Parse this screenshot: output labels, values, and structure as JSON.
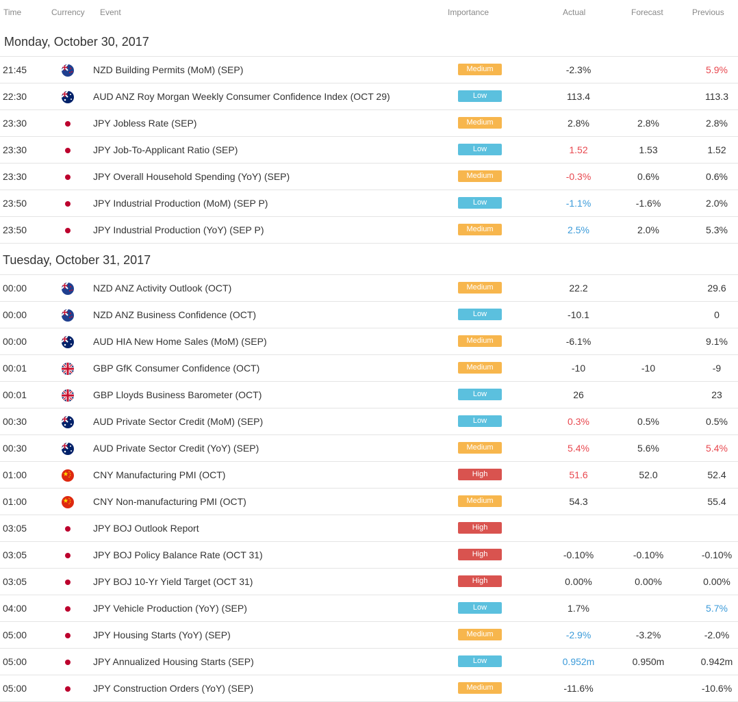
{
  "colors": {
    "medium": "#f7b64d",
    "low": "#5bc0de",
    "high": "#d9534f",
    "negative": "#e8474e",
    "positive": "#3a9ad9",
    "neutral": "#333333"
  },
  "columns": {
    "time": "Time",
    "currency": "Currency",
    "event": "Event",
    "importance": "Importance",
    "actual": "Actual",
    "forecast": "Forecast",
    "previous": "Previous"
  },
  "days": [
    {
      "title": "Monday, October 30, 2017",
      "rows": [
        {
          "time": "21:45",
          "flag": "nzd-flag-icon",
          "event": "NZD Building Permits (MoM) (SEP)",
          "importance": "Medium",
          "actual": "-2.3%",
          "actual_tone": "neutral",
          "forecast": "",
          "previous": "5.9%",
          "previous_tone": "negative"
        },
        {
          "time": "22:30",
          "flag": "aud-flag-icon",
          "event": "AUD ANZ Roy Morgan Weekly Consumer Confidence Index (OCT 29)",
          "importance": "Low",
          "actual": "113.4",
          "actual_tone": "neutral",
          "forecast": "",
          "previous": "113.3",
          "previous_tone": "neutral"
        },
        {
          "time": "23:30",
          "flag": "jpy-flag-icon",
          "event": "JPY Jobless Rate (SEP)",
          "importance": "Medium",
          "actual": "2.8%",
          "actual_tone": "neutral",
          "forecast": "2.8%",
          "previous": "2.8%",
          "previous_tone": "neutral"
        },
        {
          "time": "23:30",
          "flag": "jpy-flag-icon",
          "event": "JPY Job-To-Applicant Ratio (SEP)",
          "importance": "Low",
          "actual": "1.52",
          "actual_tone": "negative",
          "forecast": "1.53",
          "previous": "1.52",
          "previous_tone": "neutral"
        },
        {
          "time": "23:30",
          "flag": "jpy-flag-icon",
          "event": "JPY Overall Household Spending (YoY) (SEP)",
          "importance": "Medium",
          "actual": "-0.3%",
          "actual_tone": "negative",
          "forecast": "0.6%",
          "previous": "0.6%",
          "previous_tone": "neutral"
        },
        {
          "time": "23:50",
          "flag": "jpy-flag-icon",
          "event": "JPY Industrial Production (MoM) (SEP P)",
          "importance": "Low",
          "actual": "-1.1%",
          "actual_tone": "positive",
          "forecast": "-1.6%",
          "previous": "2.0%",
          "previous_tone": "neutral"
        },
        {
          "time": "23:50",
          "flag": "jpy-flag-icon",
          "event": "JPY Industrial Production (YoY) (SEP P)",
          "importance": "Medium",
          "actual": "2.5%",
          "actual_tone": "positive",
          "forecast": "2.0%",
          "previous": "5.3%",
          "previous_tone": "neutral"
        }
      ]
    },
    {
      "title": "Tuesday, October 31, 2017",
      "rows": [
        {
          "time": "00:00",
          "flag": "nzd-flag-icon",
          "event": "NZD ANZ Activity Outlook (OCT)",
          "importance": "Medium",
          "actual": "22.2",
          "actual_tone": "neutral",
          "forecast": "",
          "previous": "29.6",
          "previous_tone": "neutral"
        },
        {
          "time": "00:00",
          "flag": "nzd-flag-icon",
          "event": "NZD ANZ Business Confidence (OCT)",
          "importance": "Low",
          "actual": "-10.1",
          "actual_tone": "neutral",
          "forecast": "",
          "previous": "0",
          "previous_tone": "neutral"
        },
        {
          "time": "00:00",
          "flag": "aud-flag-icon",
          "event": "AUD HIA New Home Sales (MoM) (SEP)",
          "importance": "Medium",
          "actual": "-6.1%",
          "actual_tone": "neutral",
          "forecast": "",
          "previous": "9.1%",
          "previous_tone": "neutral"
        },
        {
          "time": "00:01",
          "flag": "gbp-flag-icon",
          "event": "GBP GfK Consumer Confidence (OCT)",
          "importance": "Medium",
          "actual": "-10",
          "actual_tone": "neutral",
          "forecast": "-10",
          "previous": "-9",
          "previous_tone": "neutral"
        },
        {
          "time": "00:01",
          "flag": "gbp-flag-icon",
          "event": "GBP Lloyds Business Barometer (OCT)",
          "importance": "Low",
          "actual": "26",
          "actual_tone": "neutral",
          "forecast": "",
          "previous": "23",
          "previous_tone": "neutral"
        },
        {
          "time": "00:30",
          "flag": "aud-flag-icon",
          "event": "AUD Private Sector Credit (MoM) (SEP)",
          "importance": "Low",
          "actual": "0.3%",
          "actual_tone": "negative",
          "forecast": "0.5%",
          "previous": "0.5%",
          "previous_tone": "neutral"
        },
        {
          "time": "00:30",
          "flag": "aud-flag-icon",
          "event": "AUD Private Sector Credit (YoY) (SEP)",
          "importance": "Medium",
          "actual": "5.4%",
          "actual_tone": "negative",
          "forecast": "5.6%",
          "previous": "5.4%",
          "previous_tone": "negative"
        },
        {
          "time": "01:00",
          "flag": "cny-flag-icon",
          "event": "CNY Manufacturing PMI (OCT)",
          "importance": "High",
          "actual": "51.6",
          "actual_tone": "negative",
          "forecast": "52.0",
          "previous": "52.4",
          "previous_tone": "neutral"
        },
        {
          "time": "01:00",
          "flag": "cny-flag-icon",
          "event": "CNY Non-manufacturing PMI (OCT)",
          "importance": "Medium",
          "actual": "54.3",
          "actual_tone": "neutral",
          "forecast": "",
          "previous": "55.4",
          "previous_tone": "neutral"
        },
        {
          "time": "03:05",
          "flag": "jpy-flag-icon",
          "event": "JPY BOJ Outlook Report",
          "importance": "High",
          "actual": "",
          "actual_tone": "neutral",
          "forecast": "",
          "previous": "",
          "previous_tone": "neutral"
        },
        {
          "time": "03:05",
          "flag": "jpy-flag-icon",
          "event": "JPY BOJ Policy Balance Rate (OCT 31)",
          "importance": "High",
          "actual": "-0.10%",
          "actual_tone": "neutral",
          "forecast": "-0.10%",
          "previous": "-0.10%",
          "previous_tone": "neutral"
        },
        {
          "time": "03:05",
          "flag": "jpy-flag-icon",
          "event": "JPY BOJ 10-Yr Yield Target (OCT 31)",
          "importance": "High",
          "actual": "0.00%",
          "actual_tone": "neutral",
          "forecast": "0.00%",
          "previous": "0.00%",
          "previous_tone": "neutral"
        },
        {
          "time": "04:00",
          "flag": "jpy-flag-icon",
          "event": "JPY Vehicle Production (YoY) (SEP)",
          "importance": "Low",
          "actual": "1.7%",
          "actual_tone": "neutral",
          "forecast": "",
          "previous": "5.7%",
          "previous_tone": "positive"
        },
        {
          "time": "05:00",
          "flag": "jpy-flag-icon",
          "event": "JPY Housing Starts (YoY) (SEP)",
          "importance": "Medium",
          "actual": "-2.9%",
          "actual_tone": "positive",
          "forecast": "-3.2%",
          "previous": "-2.0%",
          "previous_tone": "neutral"
        },
        {
          "time": "05:00",
          "flag": "jpy-flag-icon",
          "event": "JPY Annualized Housing Starts (SEP)",
          "importance": "Low",
          "actual": "0.952m",
          "actual_tone": "positive",
          "forecast": "0.950m",
          "previous": "0.942m",
          "previous_tone": "neutral"
        },
        {
          "time": "05:00",
          "flag": "jpy-flag-icon",
          "event": "JPY Construction Orders (YoY) (SEP)",
          "importance": "Medium",
          "actual": "-11.6%",
          "actual_tone": "neutral",
          "forecast": "",
          "previous": "-10.6%",
          "previous_tone": "neutral"
        }
      ]
    }
  ]
}
